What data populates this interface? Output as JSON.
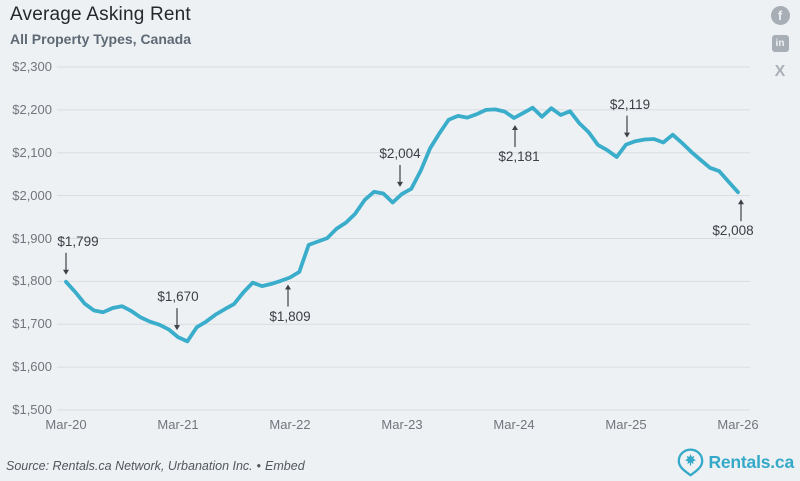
{
  "header": {
    "title": "Average Asking Rent",
    "subtitle": "All Property Types, Canada"
  },
  "social": {
    "facebook_glyph": "f",
    "linkedin_glyph": "in",
    "x_glyph": "X"
  },
  "footer": {
    "source_text": "Source: Rentals.ca Network, Urbanation Inc.",
    "separator": "•",
    "embed_label": "Embed",
    "logo_text": "Rentals.ca"
  },
  "colors": {
    "background": "#eef1f4",
    "gridline": "#d8dce0",
    "line": "#3aadcb",
    "annotation": "#3c4248",
    "axis_label": "#70767d",
    "logo_teal": "#35a9c8",
    "icon_gray": "#a8aeb5"
  },
  "chart_data": {
    "type": "line",
    "title": "Average Asking Rent",
    "subtitle": "All Property Types, Canada",
    "series_name": "Average asking rent ($, monthly)",
    "x": [
      "Mar-20",
      "Apr-20",
      "May-20",
      "Jun-20",
      "Jul-20",
      "Aug-20",
      "Sep-20",
      "Oct-20",
      "Nov-20",
      "Dec-20",
      "Jan-21",
      "Feb-21",
      "Mar-21",
      "Apr-21",
      "May-21",
      "Jun-21",
      "Jul-21",
      "Aug-21",
      "Sep-21",
      "Oct-21",
      "Nov-21",
      "Dec-21",
      "Jan-22",
      "Feb-22",
      "Mar-22",
      "Apr-22",
      "May-22",
      "Jun-22",
      "Jul-22",
      "Aug-22",
      "Sep-22",
      "Oct-22",
      "Nov-22",
      "Dec-22",
      "Jan-23",
      "Feb-23",
      "Mar-23",
      "Apr-23",
      "May-23",
      "Jun-23",
      "Jul-23",
      "Aug-23",
      "Sep-23",
      "Oct-23",
      "Nov-23",
      "Dec-23",
      "Jan-24",
      "Feb-24",
      "Mar-24",
      "Apr-24",
      "May-24",
      "Jun-24",
      "Jul-24",
      "Aug-24",
      "Sep-24",
      "Oct-24",
      "Nov-24",
      "Dec-24",
      "Jan-25",
      "Feb-25",
      "Mar-25",
      "Apr-25",
      "May-25",
      "Jun-25",
      "Jul-25",
      "Aug-25",
      "Sep-25",
      "Oct-25",
      "Nov-25",
      "Dec-25",
      "Jan-26",
      "Feb-26",
      "Mar-26"
    ],
    "values": [
      1799,
      1775,
      1748,
      1732,
      1728,
      1738,
      1742,
      1731,
      1716,
      1706,
      1699,
      1688,
      1670,
      1660,
      1693,
      1706,
      1722,
      1735,
      1747,
      1774,
      1797,
      1789,
      1794,
      1801,
      1809,
      1822,
      1885,
      1893,
      1901,
      1923,
      1937,
      1958,
      1990,
      2009,
      2005,
      1984,
      2004,
      2016,
      2058,
      2110,
      2145,
      2177,
      2186,
      2182,
      2190,
      2200,
      2201,
      2196,
      2181,
      2193,
      2205,
      2184,
      2204,
      2188,
      2197,
      2169,
      2148,
      2118,
      2106,
      2090,
      2119,
      2127,
      2131,
      2132,
      2124,
      2142,
      2123,
      2102,
      2083,
      2065,
      2057,
      2032,
      2008
    ],
    "ylim": [
      1500,
      2300
    ],
    "ytick_values": [
      2300,
      2200,
      2100,
      2000,
      1900,
      1800,
      1700,
      1600,
      1500
    ],
    "ytick_labels": [
      "$2,300",
      "$2,200",
      "$2,100",
      "$2,000",
      "$1,900",
      "$1,800",
      "$1,700",
      "$1,600",
      "$1,500"
    ],
    "xtick_positions": [
      0,
      12,
      24,
      36,
      48,
      60,
      72
    ],
    "xtick_labels": [
      "Mar-20",
      "Mar-21",
      "Mar-22",
      "Mar-23",
      "Mar-24",
      "Mar-25",
      "Mar-26"
    ],
    "grid": "horizontal",
    "legend": "none",
    "line_color": "#3aadcb",
    "annotations": [
      {
        "label": "$1,799",
        "index": 0,
        "placement": "above",
        "dx": 12,
        "arrow_dx": 0
      },
      {
        "label": "$1,670",
        "index": 12,
        "placement": "above",
        "dx": 0,
        "arrow_dx": -1
      },
      {
        "label": "$1,809",
        "index": 24,
        "placement": "below",
        "dx": 0,
        "arrow_dx": -2
      },
      {
        "label": "$2,004",
        "index": 36,
        "placement": "above",
        "dx": -2,
        "arrow_dx": -2
      },
      {
        "label": "$2,181",
        "index": 48,
        "placement": "below",
        "dx": 5,
        "arrow_dx": 1
      },
      {
        "label": "$2,119",
        "index": 60,
        "placement": "above",
        "dx": 4,
        "arrow_dx": 1
      },
      {
        "label": "$2,008",
        "index": 72,
        "placement": "below",
        "dx": -5,
        "arrow_dx": 3
      }
    ]
  }
}
